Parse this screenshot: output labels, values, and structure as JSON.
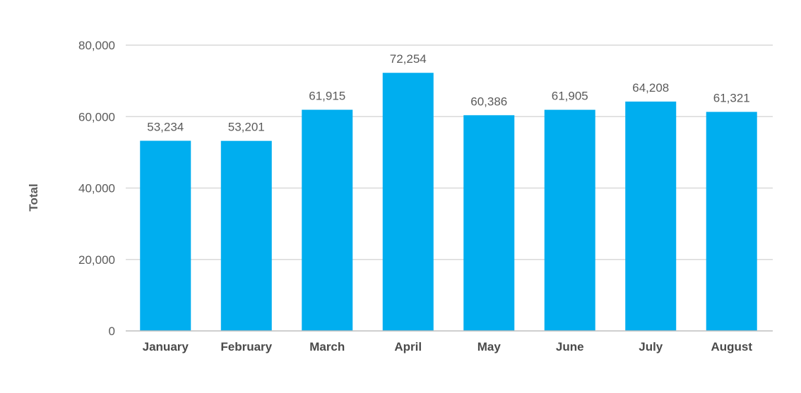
{
  "chart_data": {
    "type": "bar",
    "title": "",
    "xlabel": "",
    "ylabel": "Total",
    "categories": [
      "January",
      "February",
      "March",
      "April",
      "May",
      "June",
      "July",
      "August"
    ],
    "values": [
      53234,
      53201,
      61915,
      72254,
      60386,
      61905,
      64208,
      61321
    ],
    "data_labels": [
      "53,234",
      "53,201",
      "61,915",
      "72,254",
      "60,386",
      "61,905",
      "64,208",
      "61,321"
    ],
    "ylim": [
      0,
      80000
    ],
    "yticks": [
      0,
      20000,
      40000,
      60000,
      80000
    ],
    "ytick_labels": [
      "0",
      "20,000",
      "40,000",
      "60,000",
      "80,000"
    ],
    "grid": true,
    "legend": "none",
    "colors": {
      "bar": "#00aeef",
      "grid": "#d9d9d9",
      "text": "#5b5b5b"
    }
  }
}
